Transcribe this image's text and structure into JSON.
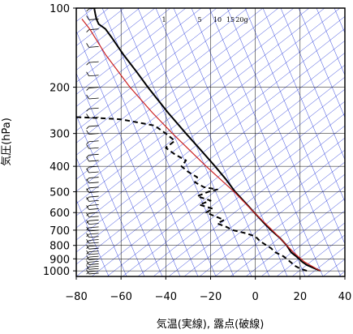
{
  "chart_data": {
    "type": "line",
    "subtype": "emagram",
    "xlabel": "気温(実線), 露点(破線)",
    "ylabel": "気圧(hPa)",
    "xlim": [
      -80,
      40
    ],
    "ylim_pressure": [
      1050,
      100
    ],
    "y_scale": "log",
    "grid": true,
    "x_ticks": [
      "−80",
      "−60",
      "−40",
      "−20",
      "0",
      "20",
      "40"
    ],
    "x_tick_values": [
      -80,
      -60,
      -40,
      -20,
      0,
      20,
      40
    ],
    "y_ticks": [
      "100",
      "200",
      "300",
      "400",
      "500",
      "600",
      "700",
      "800",
      "900",
      "1000"
    ],
    "y_tick_values": [
      100,
      200,
      300,
      400,
      500,
      600,
      700,
      800,
      900,
      1000
    ],
    "mixing_ratio_labels": [
      "1",
      "5",
      "10",
      "15",
      "20g"
    ],
    "series": [
      {
        "style": "solid",
        "color": "#000000",
        "points": [
          [
            1000,
            29
          ],
          [
            975,
            26
          ],
          [
            950,
            23
          ],
          [
            925,
            21
          ],
          [
            900,
            19.5
          ],
          [
            875,
            17.8
          ],
          [
            850,
            16
          ],
          [
            800,
            14
          ],
          [
            750,
            11
          ],
          [
            700,
            7
          ],
          [
            650,
            3.3
          ],
          [
            600,
            -0.5
          ],
          [
            550,
            -4.5
          ],
          [
            500,
            -9
          ],
          [
            450,
            -13
          ],
          [
            400,
            -18
          ],
          [
            350,
            -24
          ],
          [
            300,
            -31
          ],
          [
            250,
            -39
          ],
          [
            200,
            -48
          ],
          [
            175,
            -53
          ],
          [
            150,
            -59
          ],
          [
            130,
            -64
          ],
          [
            120,
            -67
          ],
          [
            115,
            -70
          ],
          [
            110,
            -71
          ],
          [
            105,
            -71.5
          ],
          [
            100,
            -72
          ]
        ]
      },
      {
        "style": "dashed",
        "color": "#000000",
        "points": [
          [
            1000,
            23
          ],
          [
            980,
            20
          ],
          [
            960,
            18
          ],
          [
            930,
            16
          ],
          [
            900,
            14
          ],
          [
            880,
            12.5
          ],
          [
            850,
            9
          ],
          [
            820,
            7
          ],
          [
            800,
            5
          ],
          [
            770,
            2
          ],
          [
            740,
            0
          ],
          [
            720,
            -4
          ],
          [
            700,
            -10
          ],
          [
            680,
            -13
          ],
          [
            660,
            -17
          ],
          [
            640,
            -14
          ],
          [
            620,
            -18
          ],
          [
            600,
            -22
          ],
          [
            580,
            -19
          ],
          [
            560,
            -25
          ],
          [
            540,
            -20
          ],
          [
            520,
            -26
          ],
          [
            500,
            -21
          ],
          [
            490,
            -17
          ],
          [
            480,
            -23
          ],
          [
            460,
            -27
          ],
          [
            440,
            -26
          ],
          [
            420,
            -30
          ],
          [
            400,
            -33
          ],
          [
            380,
            -31
          ],
          [
            360,
            -36
          ],
          [
            340,
            -40
          ],
          [
            320,
            -36
          ],
          [
            300,
            -40
          ],
          [
            280,
            -45
          ],
          [
            265,
            -60
          ],
          [
            262,
            -70
          ],
          [
            260,
            -80
          ]
        ]
      },
      {
        "style": "solid",
        "color": "#cc2222",
        "points": [
          [
            1000,
            29
          ],
          [
            925,
            22
          ],
          [
            850,
            17
          ],
          [
            750,
            11
          ],
          [
            700,
            7.5
          ],
          [
            600,
            -0.5
          ],
          [
            500,
            -9.5
          ],
          [
            400,
            -22
          ],
          [
            300,
            -37
          ],
          [
            250,
            -46
          ],
          [
            200,
            -56
          ],
          [
            150,
            -67
          ],
          [
            120,
            -74
          ],
          [
            110,
            -77.5
          ]
        ]
      }
    ],
    "wind_barbs": {
      "x_position": -70,
      "pressures": [
        1020,
        1000,
        980,
        960,
        940,
        920,
        900,
        880,
        860,
        840,
        820,
        800,
        780,
        760,
        740,
        720,
        700,
        680,
        660,
        640,
        620,
        600,
        580,
        560,
        540,
        520,
        500,
        480,
        460,
        440,
        420,
        400,
        380,
        360,
        340,
        320,
        300,
        280,
        260,
        240,
        220,
        200,
        180,
        160,
        140,
        120,
        110,
        100
      ]
    }
  },
  "colors": {
    "frame": "#000000",
    "grid": "#000000",
    "isotherm": "#3344dd",
    "adiabat": "#3344dd",
    "temperature": "#000000",
    "dewpoint": "#000000",
    "parcel": "#cc2222"
  }
}
